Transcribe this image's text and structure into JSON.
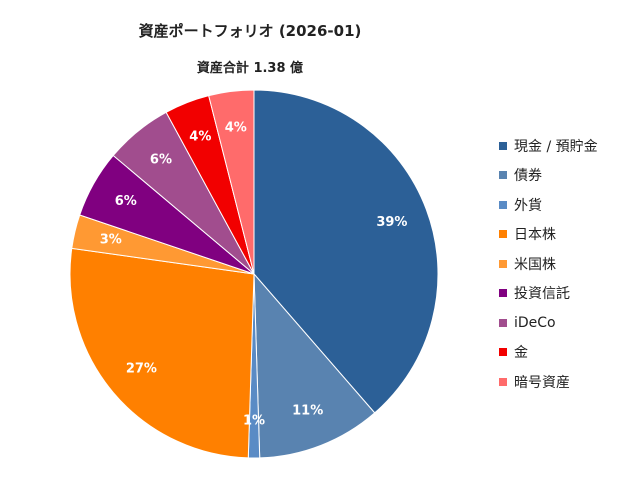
{
  "chart_data": {
    "type": "pie",
    "title": "資産ポートフォリオ (2026-01)",
    "subtitle": "資産合計 1.38 億",
    "start": "12 o'clock",
    "direction": "clockwise",
    "slices": [
      {
        "label": "現金 / 預貯金",
        "value": 39,
        "display": "39%",
        "color": "#2C6097"
      },
      {
        "label": "債券",
        "value": 11,
        "display": "11%",
        "color": "#5983B0"
      },
      {
        "label": "外貨",
        "value": 1,
        "display": "1%",
        "color": "#5A8BC5"
      },
      {
        "label": "日本株",
        "value": 27,
        "display": "27%",
        "color": "#FF8000"
      },
      {
        "label": "米国株",
        "value": 3,
        "display": "3%",
        "color": "#FF9933"
      },
      {
        "label": "投資信託",
        "value": 6,
        "display": "6%",
        "color": "#800080"
      },
      {
        "label": "iDeCo",
        "value": 6,
        "display": "6%",
        "color": "#A14D8E"
      },
      {
        "label": "金",
        "value": 4,
        "display": "4%",
        "color": "#F20000"
      },
      {
        "label": "暗号資産",
        "value": 4,
        "display": "4%",
        "color": "#FF6B6B"
      }
    ],
    "legend_position": "right"
  }
}
